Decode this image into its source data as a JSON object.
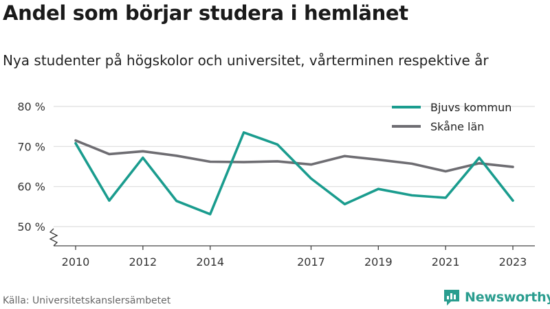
{
  "header": {
    "title": "Andel som börjar studera i hemlänet",
    "subtitle": "Nya studenter på högskolor och universitet, vårterminen respektive år"
  },
  "footer": {
    "source": "Källa: Universitetskanslersämbetet",
    "brand": "Newsworthy"
  },
  "colors": {
    "bjuv": "#1a9c8e",
    "skane": "#6e6d72",
    "grid": "#dddddd",
    "brand": "#2a9d8f"
  },
  "chart_data": {
    "type": "line",
    "title": "Andel som börjar studera i hemlänet",
    "subtitle": "Nya studenter på högskolor och universitet, vårterminen respektive år",
    "xlabel": "",
    "ylabel": "",
    "x": [
      2010,
      2011,
      2012,
      2013,
      2014,
      2015,
      2016,
      2017,
      2018,
      2019,
      2020,
      2021,
      2022,
      2023
    ],
    "x_ticks": [
      2010,
      2012,
      2014,
      2017,
      2019,
      2021,
      2023
    ],
    "y_ticks": [
      50,
      60,
      70,
      80
    ],
    "y_tick_labels": [
      "50 %",
      "60 %",
      "70 %",
      "80 %"
    ],
    "ylim": [
      45,
      80
    ],
    "xlim": [
      2010,
      2023
    ],
    "grid": true,
    "legend": "top-right",
    "axis_break": true,
    "series": [
      {
        "name": "Bjuvs kommun",
        "color": "#1a9c8e",
        "values": [
          70.8,
          56.5,
          67.2,
          56.4,
          53.1,
          73.5,
          70.5,
          62.0,
          55.6,
          59.4,
          57.8,
          57.2,
          67.2,
          56.5
        ]
      },
      {
        "name": "Skåne län",
        "color": "#6e6d72",
        "values": [
          71.5,
          68.1,
          68.8,
          67.7,
          66.2,
          66.1,
          66.3,
          65.5,
          67.6,
          66.7,
          65.7,
          63.8,
          65.8,
          64.9
        ]
      }
    ]
  }
}
